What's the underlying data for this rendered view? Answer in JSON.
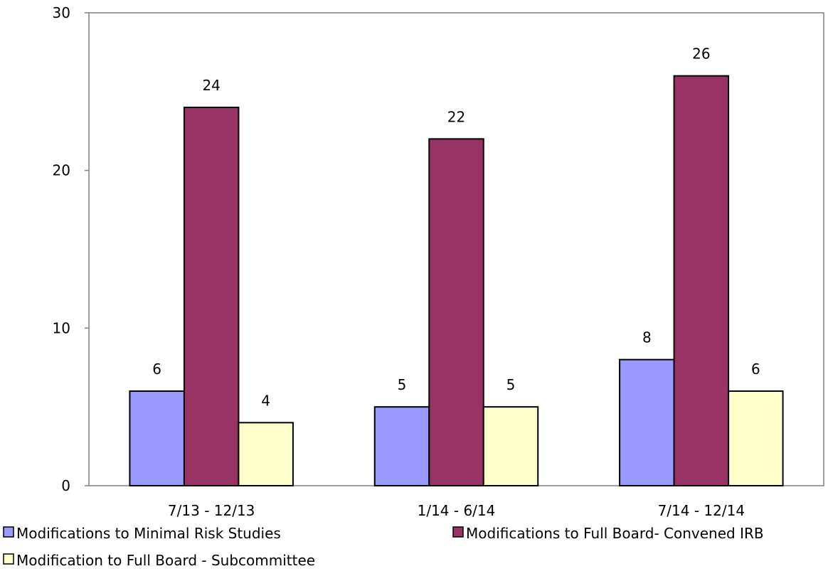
{
  "chart_data": {
    "type": "bar",
    "categories": [
      "7/13 - 12/13",
      "1/14 - 6/14",
      "7/14 - 12/14"
    ],
    "series": [
      {
        "name": "Modifications to Minimal Risk Studies",
        "values": [
          6,
          5,
          8
        ],
        "color": "#9999FF"
      },
      {
        "name": "Modifications to Full Board- Convened IRB",
        "values": [
          24,
          22,
          26
        ],
        "color": "#993366"
      },
      {
        "name": "Modification to Full Board - Subcommittee",
        "values": [
          4,
          5,
          6
        ],
        "color": "#FFFFCC"
      }
    ],
    "title": "",
    "xlabel": "",
    "ylabel": "",
    "ylim": [
      0,
      30
    ],
    "yticks": [
      0,
      10,
      20,
      30
    ],
    "grid": false,
    "legend": "bottom",
    "data_labels": true
  }
}
